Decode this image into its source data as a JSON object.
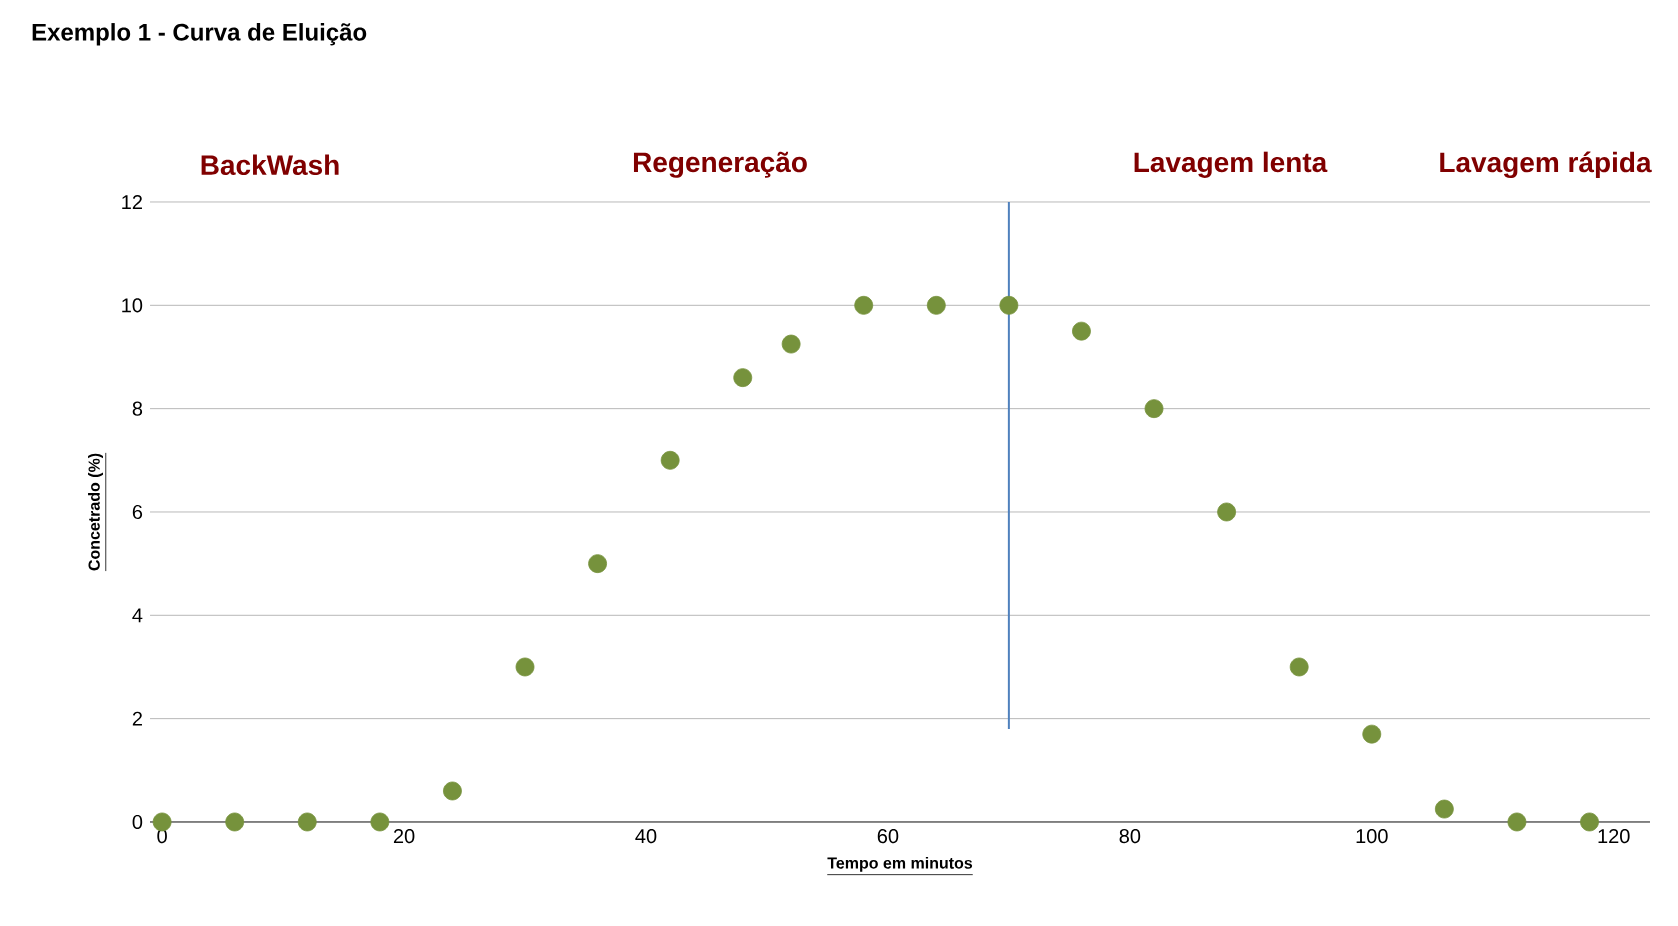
{
  "chart_data": {
    "type": "scatter",
    "title": "Exemplo 1  - Curva de Eluição",
    "xlabel": "Tempo em minutos",
    "ylabel": "Concetrado (%)",
    "annotations": [
      "BackWash",
      "Regeneração",
      "Lavagem lenta",
      "Lavagem rápida"
    ],
    "x": [
      0,
      6,
      12,
      18,
      24,
      30,
      36,
      42,
      48,
      52,
      58,
      64,
      70,
      76,
      82,
      88,
      94,
      100,
      106,
      112,
      118
    ],
    "series": [
      {
        "color": "#76923c",
        "values": [
          0,
          0,
          0,
          0,
          0.6,
          3,
          5,
          7,
          8.6,
          9.25,
          10,
          10,
          10,
          9.5,
          8,
          6,
          3,
          1.7,
          0.25,
          0,
          0
        ]
      }
    ],
    "xlim": [
      -1,
      123
    ],
    "ylim": [
      0,
      12
    ],
    "xticks": [
      0,
      20,
      40,
      60,
      80,
      100,
      120
    ],
    "yticks": [
      0,
      2,
      4,
      6,
      8,
      10,
      12
    ],
    "ref_lines": [
      {
        "axis": "x",
        "value": 70,
        "color": "#4f81bd"
      }
    ],
    "grid": "y",
    "marker": "circle"
  }
}
